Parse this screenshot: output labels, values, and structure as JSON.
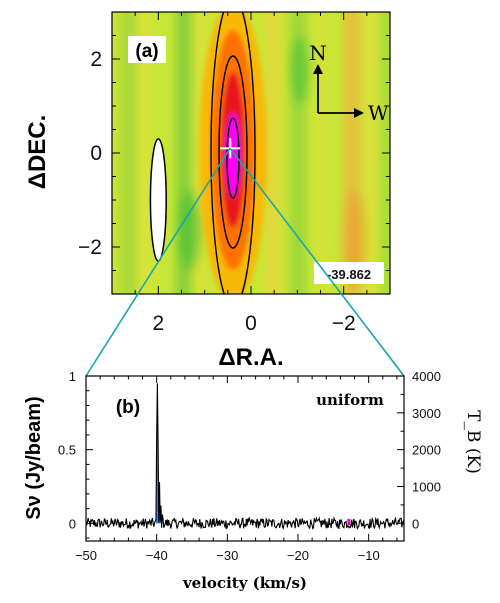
{
  "chart_data": [
    {
      "type": "heatmap",
      "panel_label": "(a)",
      "xlabel": "ΔR.A.",
      "ylabel": "ΔDEC.",
      "xlim": [
        3,
        -3
      ],
      "ylim": [
        -3,
        3
      ],
      "xticks": [
        {
          "value": 2,
          "label": "2"
        },
        {
          "value": 0,
          "label": "0"
        },
        {
          "value": -2,
          "label": "−2"
        }
      ],
      "yticks": [
        {
          "value": 2,
          "label": "2"
        },
        {
          "value": 0,
          "label": "0"
        },
        {
          "value": -2,
          "label": "−2"
        }
      ],
      "source_center": {
        "x": 0.45,
        "y": 0.1
      },
      "beam": {
        "x": 2.0,
        "y": -1.0,
        "major": 1.3,
        "minor": 0.2
      },
      "compass": {
        "north": "N",
        "west": "W"
      },
      "velocity_label": "-39.862",
      "colors": {
        "background": "#c8e636",
        "peak": "#ff00ff",
        "core": "#e41a1c",
        "halo": "#ff8c00"
      }
    },
    {
      "type": "line",
      "panel_label": "(b)",
      "annotation": "uniform",
      "xlabel": "velocity (km/s)",
      "ylabel": "Sν (Jy/beam)",
      "ylabel_right": "T_B (K)",
      "xlim": [
        -50,
        -5
      ],
      "ylim": [
        -0.12,
        1.0
      ],
      "ylim_right": [
        -480,
        4000
      ],
      "xticks": [
        {
          "value": -50,
          "label": "−50"
        },
        {
          "value": -40,
          "label": "−40"
        },
        {
          "value": -30,
          "label": "−30"
        },
        {
          "value": -20,
          "label": "−20"
        },
        {
          "value": -10,
          "label": "−10"
        }
      ],
      "yticks": [
        {
          "value": 0,
          "label": "0"
        },
        {
          "value": 0.5,
          "label": "0.5"
        },
        {
          "value": 1,
          "label": "1"
        }
      ],
      "yticks_right": [
        {
          "value": 0,
          "label": "0"
        },
        {
          "value": 1000,
          "label": "1000"
        },
        {
          "value": 2000,
          "label": "2000"
        },
        {
          "value": 3000,
          "label": "3000"
        },
        {
          "value": 4000,
          "label": "4000"
        }
      ],
      "noise_rms": 0.02,
      "peak": {
        "velocity": -39.9,
        "flux": 0.95
      },
      "line_features": [
        {
          "velocity": -40.0,
          "flux": 0.6
        },
        {
          "velocity": -39.9,
          "flux": 0.95
        },
        {
          "velocity": -39.8,
          "flux": 0.55
        },
        {
          "velocity": -39.6,
          "flux": 0.28
        },
        {
          "velocity": -39.4,
          "flux": 0.12
        },
        {
          "velocity": -39.2,
          "flux": 0.06
        }
      ],
      "shaded_region": {
        "range": [
          -40.1,
          -39.2
        ],
        "color": "#1a6fff"
      },
      "marker": {
        "velocity": -12.8,
        "color": "#ff00cc"
      }
    }
  ]
}
